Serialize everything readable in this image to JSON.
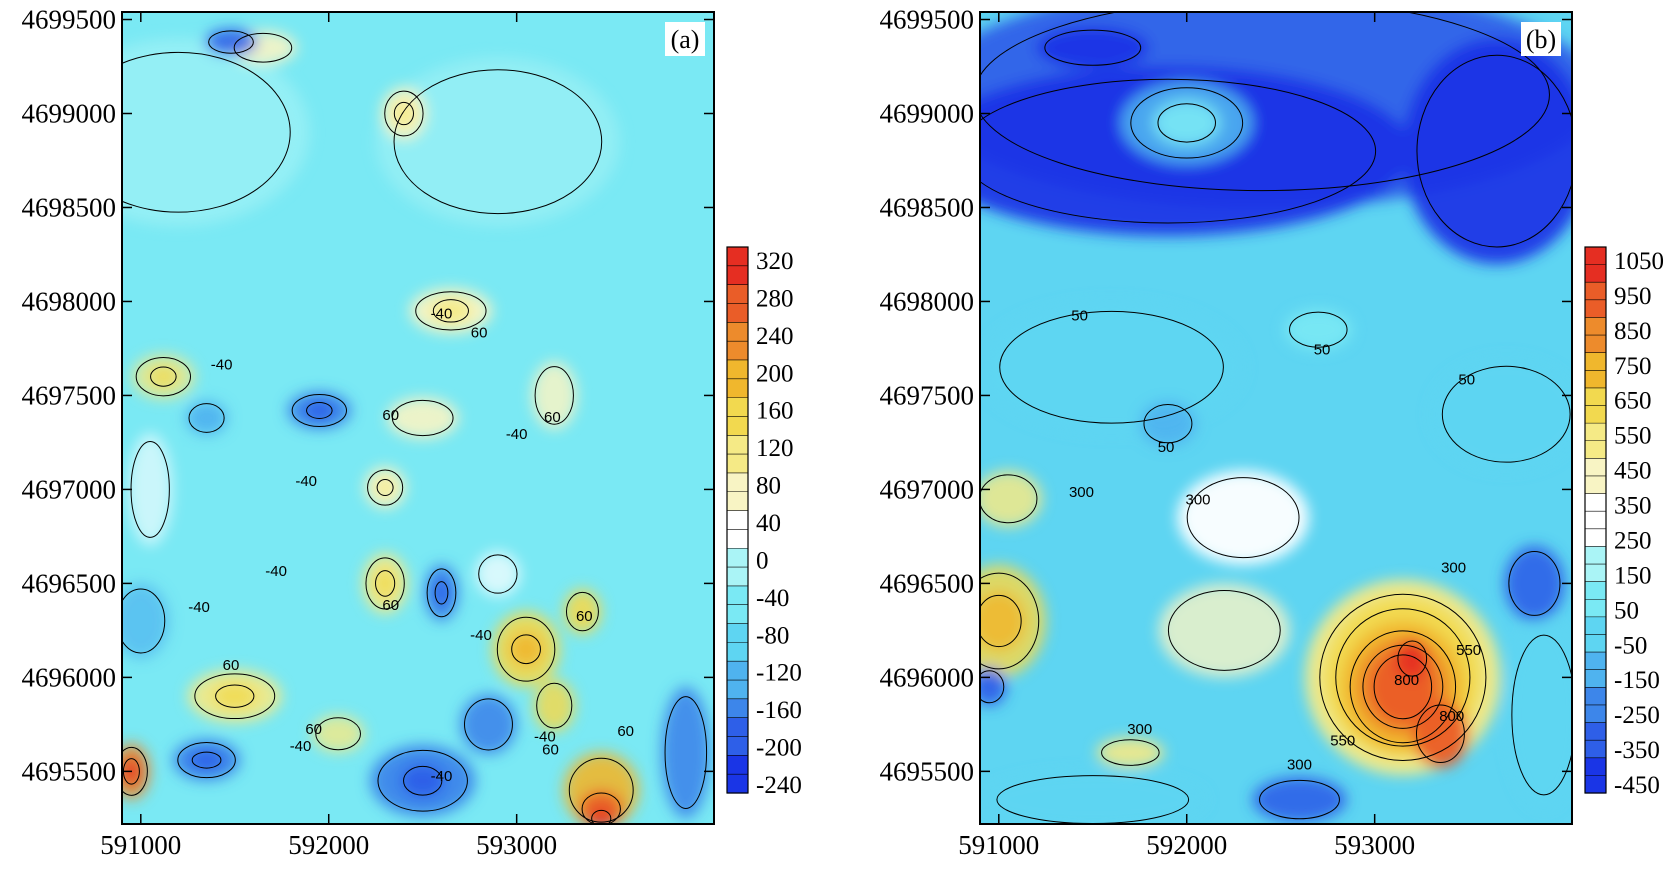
{
  "chart_data": [
    {
      "type": "heatmap",
      "panel_label": "(a)",
      "x_ticks": [
        "591000",
        "592000",
        "593000"
      ],
      "x_tick_values": [
        591000,
        592000,
        593000
      ],
      "y_ticks": [
        "4699500",
        "4699000",
        "4698500",
        "4698000",
        "4697500",
        "4697000",
        "4696500",
        "4696000",
        "4695500"
      ],
      "y_tick_values": [
        4699500,
        4699000,
        4698500,
        4698000,
        4697500,
        4697000,
        4696500,
        4696000,
        4695500
      ],
      "xlim": [
        590900,
        594050
      ],
      "ylim": [
        4695220,
        4699540
      ],
      "colorbar": {
        "ticks": [
          "320",
          "280",
          "240",
          "200",
          "160",
          "120",
          "80",
          "40",
          "0",
          "-40",
          "-80",
          "-120",
          "-160",
          "-200",
          "-240"
        ],
        "range": [
          -240,
          340
        ]
      },
      "contour_labels": [
        {
          "text": "-40",
          "x": 592600,
          "y": 4697930
        },
        {
          "text": "60",
          "x": 592800,
          "y": 4697830
        },
        {
          "text": "-40",
          "x": 591430,
          "y": 4697660
        },
        {
          "text": "60",
          "x": 592330,
          "y": 4697390
        },
        {
          "text": "-40",
          "x": 593000,
          "y": 4697290
        },
        {
          "text": "60",
          "x": 593190,
          "y": 4697380
        },
        {
          "text": "-40",
          "x": 591880,
          "y": 4697040
        },
        {
          "text": "-40",
          "x": 591720,
          "y": 4696560
        },
        {
          "text": "-40",
          "x": 591310,
          "y": 4696370
        },
        {
          "text": "60",
          "x": 592330,
          "y": 4696380
        },
        {
          "text": "-40",
          "x": 592810,
          "y": 4696220
        },
        {
          "text": "60",
          "x": 593360,
          "y": 4696320
        },
        {
          "text": "60",
          "x": 591480,
          "y": 4696060
        },
        {
          "text": "60",
          "x": 591920,
          "y": 4695720
        },
        {
          "text": "-40",
          "x": 591850,
          "y": 4695630
        },
        {
          "text": "-40",
          "x": 592600,
          "y": 4695470
        },
        {
          "text": "-40",
          "x": 593150,
          "y": 4695680
        },
        {
          "text": "60",
          "x": 593180,
          "y": 4695610
        },
        {
          "text": "60",
          "x": 593580,
          "y": 4695710
        }
      ]
    },
    {
      "type": "heatmap",
      "panel_label": "(b)",
      "x_ticks": [
        "591000",
        "592000",
        "593000"
      ],
      "x_tick_values": [
        591000,
        592000,
        593000
      ],
      "y_ticks": [
        "4699500",
        "4699000",
        "4698500",
        "4698000",
        "4697500",
        "4697000",
        "4696500",
        "4696000",
        "4695500"
      ],
      "y_tick_values": [
        4699500,
        4699000,
        4698500,
        4698000,
        4697500,
        4697000,
        4696500,
        4696000,
        4695500
      ],
      "xlim": [
        590900,
        594050
      ],
      "ylim": [
        4695220,
        4699540
      ],
      "colorbar": {
        "ticks": [
          "1050",
          "950",
          "850",
          "750",
          "650",
          "550",
          "450",
          "350",
          "250",
          "150",
          "50",
          "-50",
          "-150",
          "-250",
          "-350",
          "-450"
        ],
        "range": [
          -450,
          1100
        ]
      },
      "contour_labels": [
        {
          "text": "50",
          "x": 591430,
          "y": 4697920
        },
        {
          "text": "50",
          "x": 592720,
          "y": 4697740
        },
        {
          "text": "50",
          "x": 593490,
          "y": 4697580
        },
        {
          "text": "50",
          "x": 591890,
          "y": 4697220
        },
        {
          "text": "300",
          "x": 591440,
          "y": 4696980
        },
        {
          "text": "300",
          "x": 592060,
          "y": 4696940
        },
        {
          "text": "300",
          "x": 593420,
          "y": 4696580
        },
        {
          "text": "800",
          "x": 593170,
          "y": 4695980
        },
        {
          "text": "550",
          "x": 593500,
          "y": 4696140
        },
        {
          "text": "800",
          "x": 593410,
          "y": 4695790
        },
        {
          "text": "550",
          "x": 592830,
          "y": 4695660
        },
        {
          "text": "300",
          "x": 591750,
          "y": 4695720
        },
        {
          "text": "300",
          "x": 592600,
          "y": 4695530
        }
      ]
    }
  ],
  "colors": {
    "scale": [
      "#1a35e6",
      "#2e5fe8",
      "#3d86ea",
      "#4fb3ef",
      "#5ed5f2",
      "#7ae9f4",
      "#aaf4f6",
      "#ffffff",
      "#f8f4c4",
      "#f5ea86",
      "#f2d94f",
      "#f0b72d",
      "#ed8b2c",
      "#ea5d28",
      "#e52e22"
    ]
  }
}
